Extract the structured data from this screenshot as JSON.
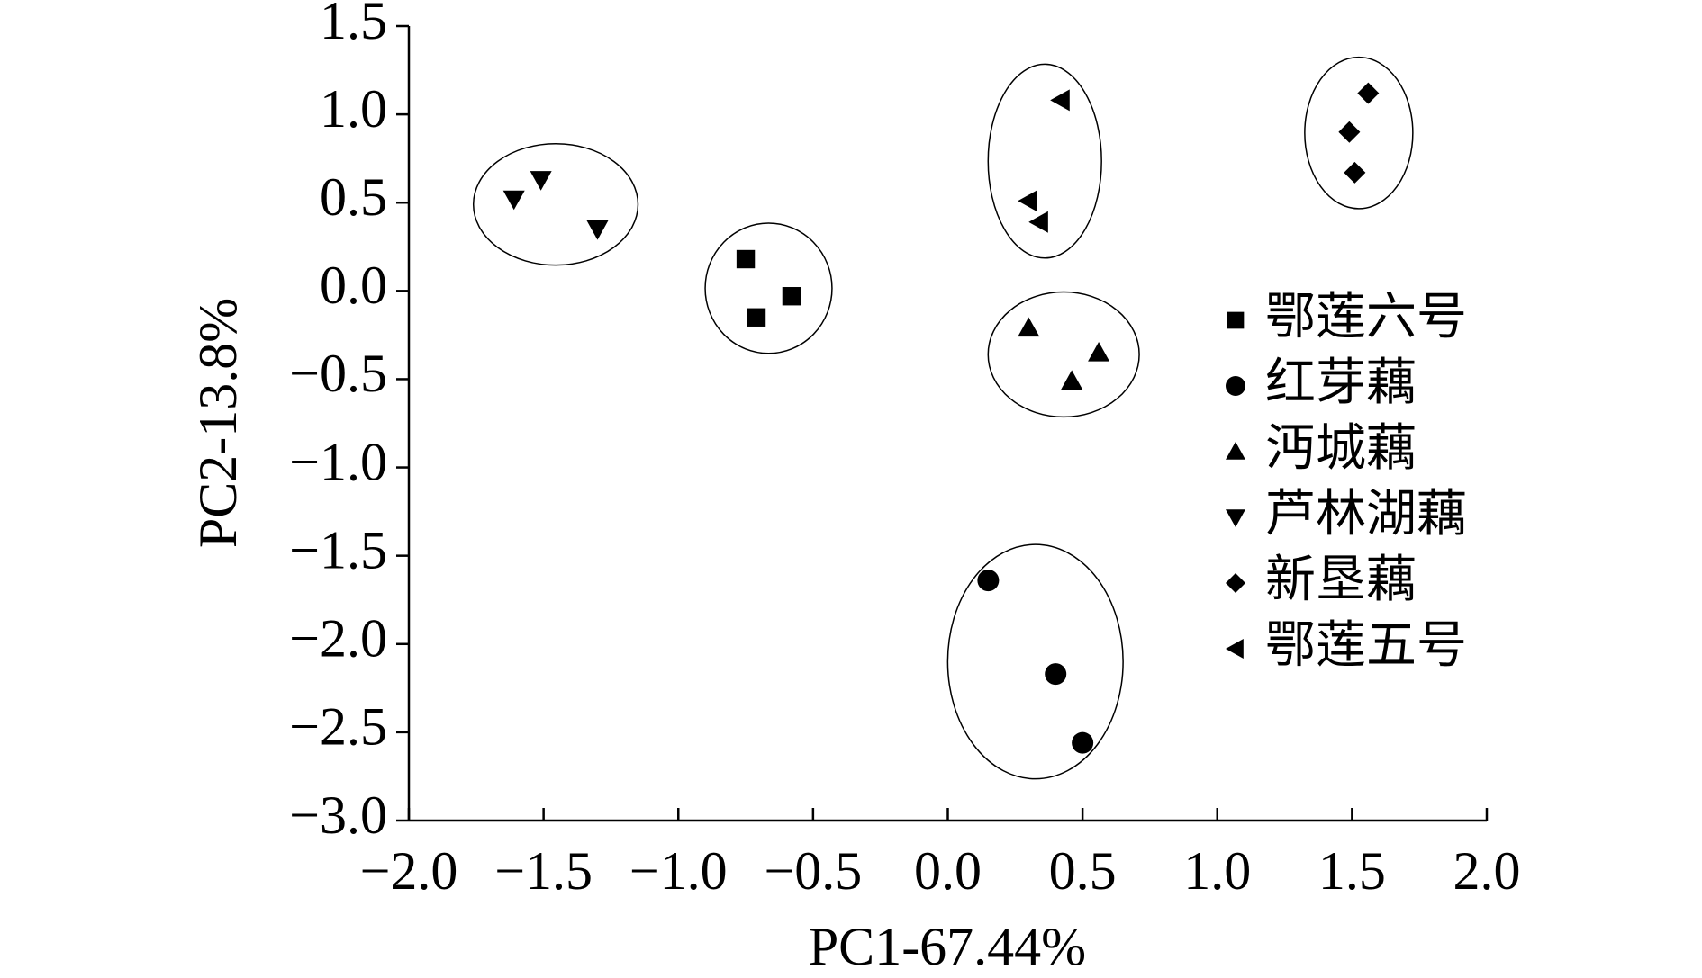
{
  "chart_data": {
    "type": "scatter",
    "x_label": "PC1-67.44%",
    "y_label": "PC2-13.8%",
    "xlim": [
      -2.0,
      2.0
    ],
    "ylim": [
      -3.0,
      1.5
    ],
    "xticks": [
      {
        "value": -2.0,
        "label": "−2.0"
      },
      {
        "value": -1.5,
        "label": "−1.5"
      },
      {
        "value": -1.0,
        "label": "−1.0"
      },
      {
        "value": -0.5,
        "label": "−0.5"
      },
      {
        "value": 0,
        "label": "0.0"
      },
      0.5,
      {
        "value": 1.0,
        "label": "1.0"
      },
      1.5,
      {
        "value": 2.0,
        "label": "2.0"
      }
    ],
    "yticks": [
      {
        "value": -3.0,
        "label": "−3.0"
      },
      {
        "value": -2.5,
        "label": "−2.5"
      },
      {
        "value": -2.0,
        "label": "−2.0"
      },
      {
        "value": -1.5,
        "label": "−1.5"
      },
      {
        "value": -1.0,
        "label": "−1.0"
      },
      {
        "value": -0.5,
        "label": "−0.5"
      },
      {
        "value": 0,
        "label": "0.0"
      },
      0.5,
      {
        "value": 1.0,
        "label": "1.0"
      },
      1.5
    ],
    "series": [
      {
        "name": "鄂莲六号",
        "color": "#000000",
        "marker": "square",
        "x": [
          -0.75,
          -0.58,
          -0.71
        ],
        "values": [
          0.18,
          -0.03,
          -0.15
        ]
      },
      {
        "name": "红芽藕",
        "color": "#000000",
        "marker": "circle",
        "x": [
          0.15,
          0.4,
          0.5
        ],
        "values": [
          -1.64,
          -2.17,
          -2.56
        ]
      },
      {
        "name": "沔城藕",
        "color": "#000000",
        "marker": "triangle-up",
        "x": [
          0.3,
          0.56,
          0.46
        ],
        "values": [
          -0.21,
          -0.35,
          -0.51
        ]
      },
      {
        "name": "芦林湖藕",
        "color": "#000000",
        "marker": "triangle-down",
        "x": [
          -1.61,
          -1.51,
          -1.3
        ],
        "values": [
          0.52,
          0.63,
          0.35
        ]
      },
      {
        "name": "新垦藕",
        "color": "#000000",
        "marker": "diamond",
        "x": [
          1.56,
          1.49,
          1.51
        ],
        "values": [
          1.12,
          0.9,
          0.67
        ]
      },
      {
        "name": "鄂莲五号",
        "color": "#000000",
        "marker": "triangle-left",
        "x": [
          0.42,
          0.3,
          0.34
        ],
        "values": [
          1.08,
          0.51,
          0.39
        ]
      }
    ]
  }
}
